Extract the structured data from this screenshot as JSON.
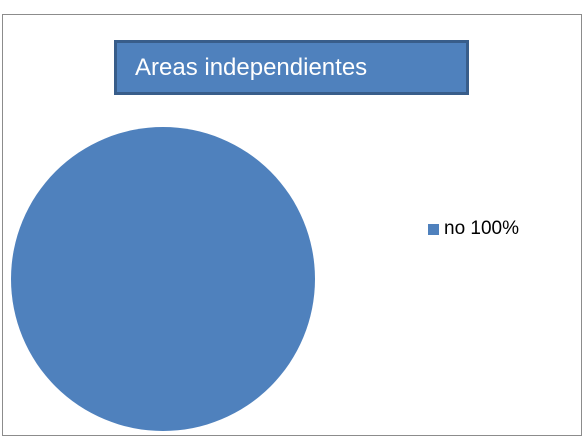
{
  "chart_data": {
    "type": "pie",
    "title": "Areas independientes",
    "categories": [
      "no"
    ],
    "values": [
      100
    ],
    "legend": {
      "placement": "right",
      "entries": [
        "no 100%"
      ]
    },
    "colors": {
      "slice": "#4f81bd",
      "title_fill": "#4f81bd",
      "title_border": "#385d8a",
      "frame_border": "#8c8c8c"
    }
  }
}
